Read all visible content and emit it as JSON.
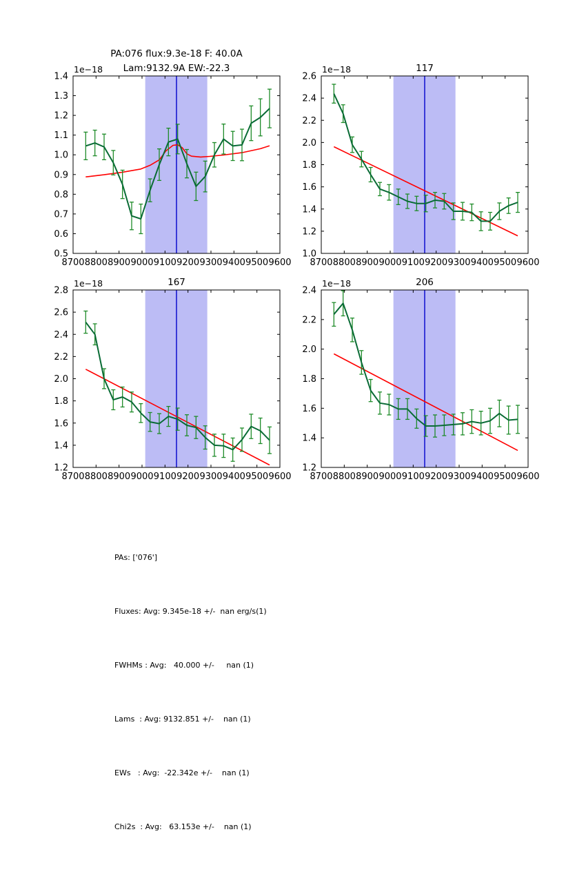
{
  "colors": {
    "band": "#bcbcf5",
    "center_line": "#0000cc",
    "fit_line": "#ff0000",
    "errorbar": "#1e8b28",
    "spectrum_line": "#096b35",
    "axes": "#000000"
  },
  "chart_data": [
    {
      "type": "line",
      "title_lines": [
        "PA:076 flux:9.3e-18 F: 40.0A",
        "Lam:9132.9A EW:-22.3"
      ],
      "offset_label": "1e−18",
      "xlim": [
        8700,
        9600
      ],
      "ylim": [
        0.5,
        1.4
      ],
      "xticks": [
        8700,
        8800,
        8900,
        9000,
        9100,
        9200,
        9300,
        9400,
        9500,
        9600
      ],
      "yticks": [
        0.5,
        0.6,
        0.7,
        0.8,
        0.9,
        1.0,
        1.1,
        1.2,
        1.3,
        1.4
      ],
      "band": [
        9014,
        9284
      ],
      "center": 9150,
      "grid": false,
      "legend": null,
      "x": [
        8755,
        8795,
        8835,
        8875,
        8915,
        8955,
        8995,
        9035,
        9075,
        9115,
        9155,
        9195,
        9235,
        9275,
        9315,
        9355,
        9395,
        9435,
        9475,
        9515,
        9555
      ],
      "y": [
        1.045,
        1.06,
        1.04,
        0.96,
        0.85,
        0.69,
        0.675,
        0.82,
        0.95,
        1.065,
        1.08,
        0.955,
        0.84,
        0.89,
        1.0,
        1.08,
        1.045,
        1.05,
        1.16,
        1.19,
        1.235
      ],
      "yerr": [
        0.07,
        0.065,
        0.065,
        0.062,
        0.072,
        0.07,
        0.075,
        0.058,
        0.08,
        0.07,
        0.075,
        0.072,
        0.072,
        0.078,
        0.062,
        0.076,
        0.074,
        0.08,
        0.088,
        0.094,
        0.098
      ],
      "fit": {
        "x": [
          8755,
          8835,
          8915,
          8995,
          9035,
          9075,
          9105,
          9135,
          9155,
          9175,
          9195,
          9215,
          9255,
          9295,
          9355,
          9435,
          9515,
          9555
        ],
        "y": [
          0.888,
          0.899,
          0.912,
          0.928,
          0.947,
          0.974,
          1.021,
          1.048,
          1.051,
          1.036,
          1.005,
          0.993,
          0.989,
          0.992,
          0.999,
          1.011,
          1.031,
          1.046
        ]
      }
    },
    {
      "type": "line",
      "title_lines": [
        "117"
      ],
      "offset_label": "1e−18",
      "xlim": [
        8700,
        9600
      ],
      "ylim": [
        1.0,
        2.6
      ],
      "xticks": [
        8700,
        8800,
        8900,
        9000,
        9100,
        9200,
        9300,
        9400,
        9500,
        9600
      ],
      "yticks": [
        1.0,
        1.2,
        1.4,
        1.6,
        1.8,
        2.0,
        2.2,
        2.4,
        2.6
      ],
      "band": [
        9014,
        9284
      ],
      "center": 9150,
      "grid": false,
      "legend": null,
      "x": [
        8755,
        8795,
        8835,
        8875,
        8915,
        8955,
        8995,
        9035,
        9075,
        9115,
        9155,
        9195,
        9235,
        9275,
        9315,
        9355,
        9395,
        9435,
        9475,
        9515,
        9555
      ],
      "y": [
        2.44,
        2.26,
        1.98,
        1.85,
        1.71,
        1.58,
        1.55,
        1.51,
        1.47,
        1.45,
        1.45,
        1.48,
        1.47,
        1.38,
        1.38,
        1.37,
        1.29,
        1.29,
        1.38,
        1.43,
        1.46
      ],
      "yerr": [
        0.085,
        0.08,
        0.07,
        0.07,
        0.065,
        0.06,
        0.07,
        0.07,
        0.065,
        0.065,
        0.075,
        0.07,
        0.07,
        0.075,
        0.08,
        0.075,
        0.085,
        0.08,
        0.075,
        0.07,
        0.09
      ],
      "fit": {
        "x": [
          8755,
          9555
        ],
        "y": [
          1.962,
          1.158
        ]
      }
    },
    {
      "type": "line",
      "title_lines": [
        "167"
      ],
      "offset_label": "1e−18",
      "xlim": [
        8700,
        9600
      ],
      "ylim": [
        1.2,
        2.8
      ],
      "xticks": [
        8700,
        8800,
        8900,
        9000,
        9100,
        9200,
        9300,
        9400,
        9500,
        9600
      ],
      "yticks": [
        1.2,
        1.4,
        1.6,
        1.8,
        2.0,
        2.2,
        2.4,
        2.6,
        2.8
      ],
      "band": [
        9014,
        9284
      ],
      "center": 9150,
      "grid": false,
      "legend": null,
      "x": [
        8755,
        8795,
        8835,
        8875,
        8915,
        8955,
        8995,
        9035,
        9075,
        9115,
        9155,
        9195,
        9235,
        9275,
        9315,
        9355,
        9395,
        9435,
        9475,
        9515,
        9555
      ],
      "y": [
        2.51,
        2.4,
        2.0,
        1.81,
        1.835,
        1.79,
        1.69,
        1.61,
        1.595,
        1.66,
        1.635,
        1.58,
        1.56,
        1.47,
        1.4,
        1.395,
        1.36,
        1.45,
        1.57,
        1.53,
        1.445
      ],
      "yerr": [
        0.1,
        0.095,
        0.09,
        0.09,
        0.09,
        0.09,
        0.085,
        0.085,
        0.09,
        0.09,
        0.1,
        0.095,
        0.1,
        0.105,
        0.1,
        0.105,
        0.105,
        0.105,
        0.11,
        0.115,
        0.12
      ],
      "fit": {
        "x": [
          8755,
          9555
        ],
        "y": [
          2.085,
          1.222
        ]
      }
    },
    {
      "type": "line",
      "title_lines": [
        "206"
      ],
      "offset_label": "1e−18",
      "xlim": [
        8700,
        9600
      ],
      "ylim": [
        1.2,
        2.4
      ],
      "xticks": [
        8700,
        8800,
        8900,
        9000,
        9100,
        9200,
        9300,
        9400,
        9500,
        9600
      ],
      "yticks": [
        1.2,
        1.4,
        1.6,
        1.8,
        2.0,
        2.2,
        2.4
      ],
      "band": [
        9014,
        9284
      ],
      "center": 9150,
      "grid": false,
      "legend": null,
      "x": [
        8755,
        8795,
        8835,
        8875,
        8915,
        8955,
        8995,
        9035,
        9075,
        9115,
        9155,
        9195,
        9235,
        9275,
        9315,
        9355,
        9395,
        9435,
        9475,
        9515,
        9555
      ],
      "y": [
        2.235,
        2.31,
        2.13,
        1.91,
        1.72,
        1.635,
        1.625,
        1.595,
        1.595,
        1.53,
        1.48,
        1.48,
        1.485,
        1.49,
        1.495,
        1.51,
        1.5,
        1.515,
        1.565,
        1.52,
        1.525
      ],
      "yerr": [
        0.08,
        0.085,
        0.08,
        0.08,
        0.075,
        0.075,
        0.07,
        0.07,
        0.07,
        0.065,
        0.07,
        0.075,
        0.07,
        0.07,
        0.075,
        0.08,
        0.08,
        0.085,
        0.09,
        0.095,
        0.095
      ],
      "fit": {
        "x": [
          8755,
          9555
        ],
        "y": [
          1.968,
          1.315
        ]
      }
    }
  ],
  "stats": {
    "lines": [
      "PAs: ['076']",
      "Fluxes: Avg: 9.345e-18 +/-  nan erg/s(1)",
      "FWHMs : Avg:   40.000 +/-     nan (1)",
      "Lams  : Avg: 9132.851 +/-    nan (1)",
      "EWs   : Avg:  -22.342e +/-    nan (1)",
      "Chi2s  : Avg:   63.153e +/-    nan (1)"
    ]
  }
}
